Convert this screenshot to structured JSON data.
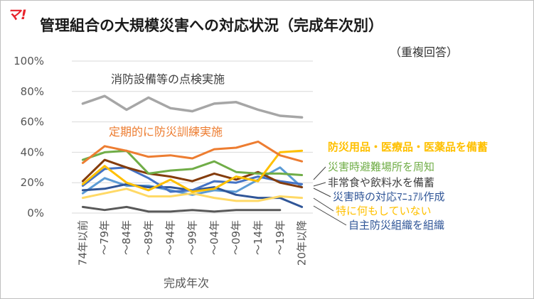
{
  "logo": "マ!",
  "title": "管理組合の大規模災害への対応状況（完成年次別）",
  "subtitle": "（重複回答）",
  "chart_data": {
    "type": "line",
    "title": "管理組合の大規模災害への対応状況（完成年次別）",
    "subtitle": "（重複回答）",
    "xlabel": "完成年次",
    "ylabel": "",
    "ylim": [
      0,
      100
    ],
    "yticks": [
      0,
      20,
      40,
      60,
      80,
      100
    ],
    "ytick_labels": [
      "0%",
      "20%",
      "40%",
      "60%",
      "80%",
      "100%"
    ],
    "grid": true,
    "categories": [
      "74年以前",
      "～79年",
      "～84年",
      "～89年",
      "～94年",
      "～99年",
      "～04年",
      "～09年",
      "～14年",
      "～19年",
      "20年以降"
    ],
    "series": [
      {
        "name": "消防設備等の点検実施",
        "color": "#a6a6a6",
        "label_style": "chart-annotation",
        "values": [
          72,
          77,
          68,
          76,
          69,
          67,
          72,
          73,
          68,
          64,
          63
        ]
      },
      {
        "name": "定期的に防災訓練実施",
        "color": "#ed7d31",
        "label_style": "chart-annotation",
        "values": [
          33,
          44,
          41,
          37,
          38,
          36,
          42,
          43,
          47,
          38,
          34
        ]
      },
      {
        "name": "防災用品・医療品・医薬品を備蓄",
        "color": "#ffc000",
        "label_style": "legend-bold",
        "values": [
          19,
          31,
          20,
          15,
          22,
          14,
          16,
          24,
          21,
          40,
          41
        ]
      },
      {
        "name": "災害時避難場所を周知",
        "color": "#70ad47",
        "label_style": "legend",
        "values": [
          35,
          40,
          41,
          26,
          28,
          29,
          34,
          27,
          26,
          26,
          25
        ]
      },
      {
        "name": "非常食や飲料水を備蓄",
        "color": "#843c0c",
        "label_style": "legend",
        "values": [
          21,
          35,
          30,
          26,
          24,
          21,
          26,
          22,
          27,
          20,
          17
        ]
      },
      {
        "name": "災害時の対応ﾏﾆｭｱﾙ作成",
        "color": "#4472c4",
        "label_style": "legend",
        "values": [
          18,
          29,
          30,
          23,
          14,
          15,
          21,
          20,
          24,
          21,
          19
        ]
      },
      {
        "name": "特に何もしていない",
        "color": "#ffd966",
        "label_style": "legend",
        "values": [
          10,
          13,
          16,
          11,
          11,
          13,
          10,
          8,
          8,
          11,
          10
        ]
      },
      {
        "name": "自主防災組織を組織",
        "color": "#2f5597",
        "label_style": "legend",
        "values": [
          15,
          16,
          19,
          17,
          17,
          15,
          17,
          12,
          10,
          10,
          4
        ]
      },
      {
        "name": "",
        "color": "#5b9bd5",
        "label_style": "none",
        "values": [
          13,
          23,
          18,
          18,
          15,
          12,
          15,
          14,
          22,
          30,
          17
        ]
      },
      {
        "name": "",
        "color": "#595959",
        "label_style": "none",
        "values": [
          4,
          2,
          4,
          1,
          1,
          2,
          1,
          2,
          2,
          2,
          null
        ]
      }
    ]
  }
}
